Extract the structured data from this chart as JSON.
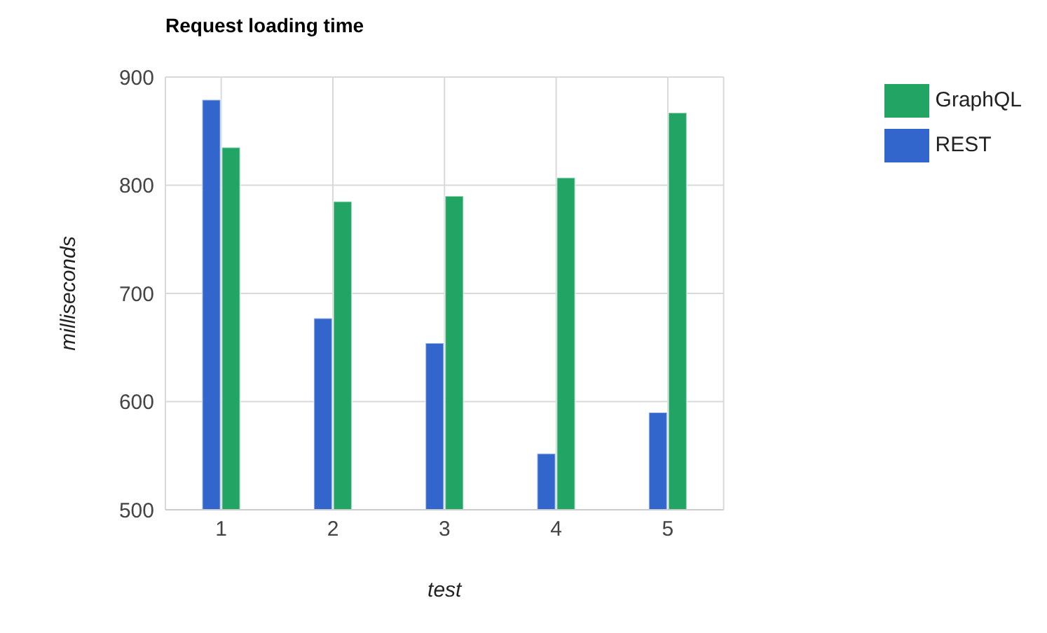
{
  "chart_data": {
    "type": "bar",
    "title": "Request loading time",
    "xlabel": "test",
    "ylabel": "milliseconds",
    "categories": [
      "1",
      "2",
      "3",
      "4",
      "5"
    ],
    "series": [
      {
        "name": "REST",
        "color": "#3366cc",
        "values": [
          879,
          677,
          654,
          552,
          590
        ]
      },
      {
        "name": "GraphQL",
        "color": "#21a464",
        "values": [
          835,
          785,
          790,
          807,
          867
        ]
      }
    ],
    "ylim": [
      500,
      900
    ],
    "yticks": [
      500,
      600,
      700,
      800,
      900
    ],
    "grid": true,
    "legend": "top right"
  }
}
